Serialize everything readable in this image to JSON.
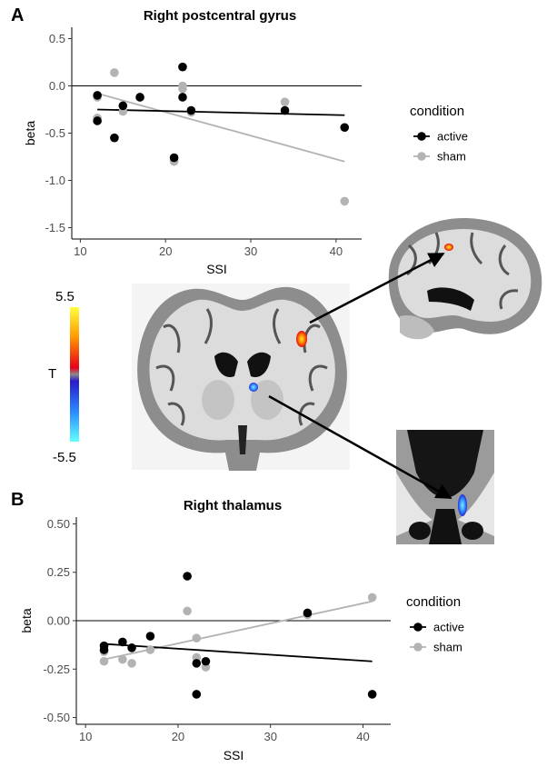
{
  "colors": {
    "active": "#000000",
    "sham": "#b3b3b3"
  },
  "panels": {
    "a": {
      "letter": "A"
    },
    "b": {
      "letter": "B"
    }
  },
  "colorbar": {
    "max_label": "5.5",
    "min_label": "-5.5",
    "title": "T"
  },
  "brain": {
    "description_icons": [
      "coronal-brain-slice",
      "sagittal-brain-slice",
      "thalamus-zoom-slice"
    ]
  },
  "chart_data": [
    {
      "id": "a",
      "type": "scatter",
      "title": "Right postcentral gyrus",
      "xlabel": "SSI",
      "ylabel": "beta",
      "xlim": [
        9,
        43
      ],
      "ylim": [
        -1.62,
        0.62
      ],
      "xticks": [
        "10",
        "20",
        "30",
        "40"
      ],
      "xtick_values": [
        10,
        20,
        30,
        40
      ],
      "yticks": [
        "0.5",
        "0.0",
        "-0.5",
        "-1.0",
        "-1.5"
      ],
      "ytick_values": [
        0.5,
        0.0,
        -0.5,
        -1.0,
        -1.5
      ],
      "hline": 0,
      "legend": {
        "title": "condition",
        "position": "right",
        "entries": [
          "active",
          "sham"
        ]
      },
      "series": [
        {
          "name": "active",
          "x": [
            12,
            12,
            14,
            15,
            17,
            21,
            22,
            22,
            23,
            34,
            41
          ],
          "y": [
            -0.1,
            -0.37,
            -0.55,
            -0.21,
            -0.12,
            -0.76,
            0.2,
            -0.12,
            -0.26,
            -0.26,
            -0.44
          ],
          "fit": [
            [
              12,
              -0.25
            ],
            [
              41,
              -0.31
            ]
          ]
        },
        {
          "name": "sham",
          "x": [
            12,
            12,
            14,
            15,
            17,
            21,
            22,
            22,
            23,
            34,
            41
          ],
          "y": [
            -0.12,
            -0.34,
            0.14,
            -0.27,
            -0.12,
            -0.8,
            0.0,
            -0.03,
            -0.28,
            -0.17,
            -1.22
          ],
          "fit": [
            [
              12,
              -0.08
            ],
            [
              41,
              -0.8
            ]
          ]
        }
      ]
    },
    {
      "id": "b",
      "type": "scatter",
      "title": "Right thalamus",
      "xlabel": "SSI",
      "ylabel": "beta",
      "xlim": [
        9,
        43
      ],
      "ylim": [
        -0.535,
        0.535
      ],
      "xticks": [
        "10",
        "20",
        "30",
        "40"
      ],
      "xtick_values": [
        10,
        20,
        30,
        40
      ],
      "yticks": [
        "0.50",
        "0.25",
        "0.00",
        "-0.25",
        "-0.50"
      ],
      "ytick_values": [
        0.5,
        0.25,
        0.0,
        -0.25,
        -0.5
      ],
      "hline": 0,
      "legend": {
        "title": "condition",
        "position": "right",
        "entries": [
          "active",
          "sham"
        ]
      },
      "series": [
        {
          "name": "active",
          "x": [
            12,
            12,
            14,
            15,
            17,
            21,
            22,
            22,
            23,
            34,
            41
          ],
          "y": [
            -0.13,
            -0.15,
            -0.11,
            -0.14,
            -0.08,
            0.23,
            -0.22,
            -0.38,
            -0.21,
            0.04,
            -0.38
          ],
          "fit": [
            [
              12,
              -0.12
            ],
            [
              41,
              -0.21
            ]
          ]
        },
        {
          "name": "sham",
          "x": [
            12,
            12,
            14,
            15,
            17,
            21,
            22,
            22,
            23,
            34,
            41
          ],
          "y": [
            -0.16,
            -0.21,
            -0.2,
            -0.22,
            -0.15,
            0.05,
            -0.09,
            -0.19,
            -0.24,
            0.03,
            0.12
          ],
          "fit": [
            [
              12,
              -0.2
            ],
            [
              41,
              0.1
            ]
          ]
        }
      ]
    }
  ]
}
